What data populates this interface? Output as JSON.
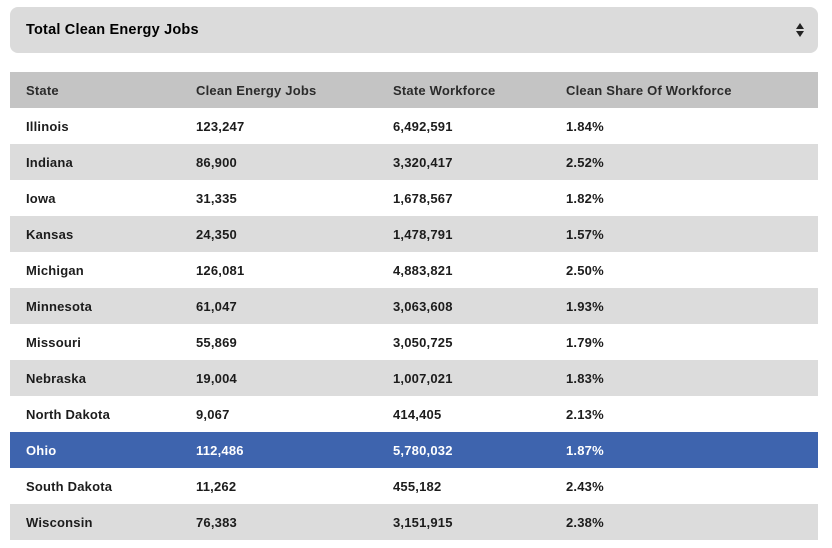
{
  "dropdown": {
    "selected_option": "Total Clean Energy Jobs"
  },
  "table": {
    "columns": {
      "state": "State",
      "jobs": "Clean Energy Jobs",
      "workforce": "State Workforce",
      "share": "Clean Share Of Workforce"
    },
    "rows": [
      {
        "state": "Illinois",
        "jobs": "123,247",
        "workforce": "6,492,591",
        "share": "1.84%",
        "highlighted": false
      },
      {
        "state": "Indiana",
        "jobs": "86,900",
        "workforce": "3,320,417",
        "share": "2.52%",
        "highlighted": false
      },
      {
        "state": "Iowa",
        "jobs": "31,335",
        "workforce": "1,678,567",
        "share": "1.82%",
        "highlighted": false
      },
      {
        "state": "Kansas",
        "jobs": "24,350",
        "workforce": "1,478,791",
        "share": "1.57%",
        "highlighted": false
      },
      {
        "state": "Michigan",
        "jobs": "126,081",
        "workforce": "4,883,821",
        "share": "2.50%",
        "highlighted": false
      },
      {
        "state": "Minnesota",
        "jobs": "61,047",
        "workforce": "3,063,608",
        "share": "1.93%",
        "highlighted": false
      },
      {
        "state": "Missouri",
        "jobs": "55,869",
        "workforce": "3,050,725",
        "share": "1.79%",
        "highlighted": false
      },
      {
        "state": "Nebraska",
        "jobs": "19,004",
        "workforce": "1,007,021",
        "share": "1.83%",
        "highlighted": false
      },
      {
        "state": "North Dakota",
        "jobs": "9,067",
        "workforce": "414,405",
        "share": "2.13%",
        "highlighted": false
      },
      {
        "state": "Ohio",
        "jobs": "112,486",
        "workforce": "5,780,032",
        "share": "1.87%",
        "highlighted": true
      },
      {
        "state": "South Dakota",
        "jobs": "11,262",
        "workforce": "455,182",
        "share": "2.43%",
        "highlighted": false
      },
      {
        "state": "Wisconsin",
        "jobs": "76,383",
        "workforce": "3,151,915",
        "share": "2.38%",
        "highlighted": false
      }
    ]
  },
  "colors": {
    "dropdown_bg": "#dbdbdb",
    "header_bg": "#c4c4c4",
    "stripe_bg": "#dcdcdc",
    "highlight_bg": "#3e64ae",
    "text": "#1c1c1c",
    "highlight_text": "#ffffff"
  },
  "icons": {
    "select_spinner": "up-down-arrows"
  }
}
